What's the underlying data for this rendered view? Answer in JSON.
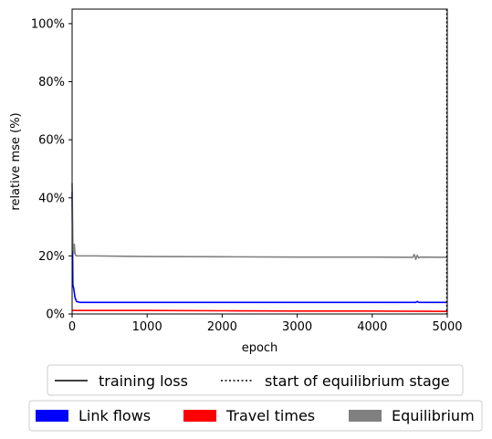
{
  "chart_data": {
    "type": "line",
    "xlabel": "epoch",
    "ylabel": "relative mse (%)",
    "xlim": [
      0,
      5000
    ],
    "ylim": [
      0,
      105
    ],
    "x_ticks": [
      0,
      1000,
      2000,
      3000,
      4000,
      5000
    ],
    "y_ticks": [
      0,
      20,
      40,
      60,
      80,
      100
    ],
    "x_tick_labels": [
      "0",
      "1000",
      "2000",
      "3000",
      "4000",
      "5000"
    ],
    "y_tick_labels": [
      "0%",
      "20%",
      "40%",
      "60%",
      "80%",
      "100%"
    ],
    "grid": false,
    "equilibrium_start_epoch": 5000,
    "series": [
      {
        "name": "Link flows",
        "color": "#0000ff",
        "x": [
          0,
          10,
          20,
          40,
          60,
          100,
          200,
          500,
          1000,
          2000,
          3000,
          4000,
          4580,
          4600,
          4620,
          5000
        ],
        "y": [
          42,
          10,
          9,
          5.5,
          4.3,
          4.0,
          4.0,
          4.0,
          4.0,
          4.0,
          4.0,
          4.0,
          4.0,
          4.3,
          4.0,
          4.0
        ]
      },
      {
        "name": "Travel times",
        "color": "#ff0000",
        "x": [
          0,
          20,
          100,
          1000,
          2000,
          3000,
          4000,
          5000
        ],
        "y": [
          1.3,
          1.2,
          1.2,
          1.2,
          1.1,
          1.0,
          1.0,
          0.9
        ]
      },
      {
        "name": "Equilibrium",
        "color": "#808080",
        "x": [
          0,
          10,
          20,
          30,
          40,
          60,
          100,
          300,
          1000,
          2000,
          3000,
          4000,
          4540,
          4560,
          4580,
          4600,
          4620,
          4640,
          5000
        ],
        "y": [
          45,
          24,
          21,
          24,
          20.5,
          20,
          20,
          20,
          19.8,
          19.7,
          19.6,
          19.6,
          19.5,
          20.5,
          18.8,
          20.2,
          19.3,
          19.6,
          19.5
        ]
      }
    ],
    "legend_lines": [
      {
        "label": "training loss",
        "style": "solid",
        "color": "#000000"
      },
      {
        "label": "start of equilibrium stage",
        "style": "dotted",
        "color": "#000000"
      }
    ],
    "legend_patches": [
      {
        "label": "Link flows",
        "color": "#0000ff"
      },
      {
        "label": "Travel times",
        "color": "#ff0000"
      },
      {
        "label": "Equilibrium",
        "color": "#808080"
      }
    ],
    "legend_placement": "bottom"
  }
}
